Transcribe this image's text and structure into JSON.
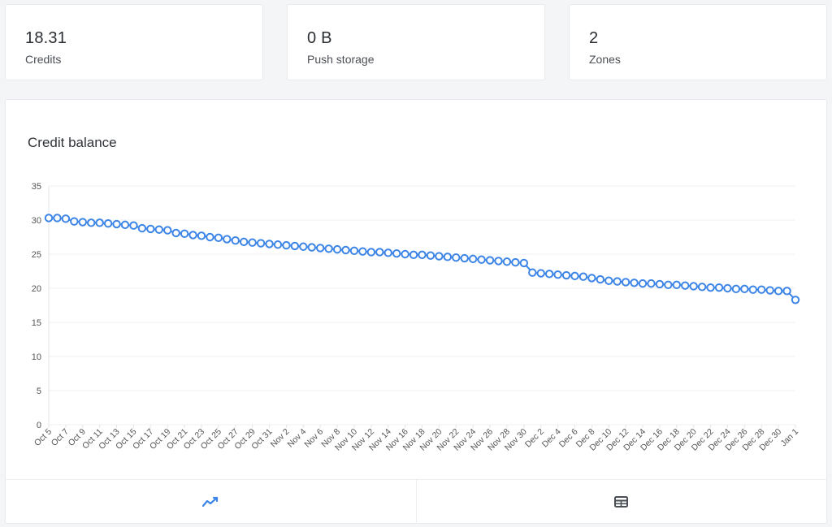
{
  "stats": {
    "credits": {
      "value": "18.31",
      "label": "Credits"
    },
    "push_storage": {
      "value": "0 B",
      "label": "Push storage"
    },
    "zones": {
      "value": "2",
      "label": "Zones"
    }
  },
  "chart_panel": {
    "title": "Credit balance",
    "tabs": [
      {
        "name": "line-chart-view",
        "icon": "trend-line-icon",
        "active": true
      },
      {
        "name": "table-view",
        "icon": "table-icon",
        "active": false
      }
    ]
  },
  "colors": {
    "accent": "#3d85e6",
    "grid": "#eef0f2",
    "axis_text": "#555555"
  },
  "chart_data": {
    "type": "line",
    "title": "Credit balance",
    "xlabel": "",
    "ylabel": "",
    "ylim": [
      0,
      35
    ],
    "yticks": [
      0,
      5,
      10,
      15,
      20,
      25,
      30,
      35
    ],
    "grid": true,
    "legend": "none",
    "x_tick_labels": [
      "Oct 5",
      "Oct 7",
      "Oct 9",
      "Oct 11",
      "Oct 13",
      "Oct 15",
      "Oct 17",
      "Oct 19",
      "Oct 21",
      "Oct 23",
      "Oct 25",
      "Oct 27",
      "Oct 29",
      "Oct 31",
      "Nov 2",
      "Nov 4",
      "Nov 6",
      "Nov 8",
      "Nov 10",
      "Nov 12",
      "Nov 14",
      "Nov 16",
      "Nov 18",
      "Nov 20",
      "Nov 22",
      "Nov 24",
      "Nov 26",
      "Nov 28",
      "Nov 30",
      "Dec 2",
      "Dec 4",
      "Dec 6",
      "Dec 8",
      "Dec 10",
      "Dec 12",
      "Dec 14",
      "Dec 16",
      "Dec 18",
      "Dec 20",
      "Dec 22",
      "Dec 24",
      "Dec 26",
      "Dec 28",
      "Dec 30",
      "Jan 1"
    ],
    "series": [
      {
        "values": [
          30.3,
          30.3,
          30.2,
          29.8,
          29.7,
          29.6,
          29.6,
          29.5,
          29.4,
          29.3,
          29.2,
          28.8,
          28.7,
          28.6,
          28.5,
          28.1,
          28.0,
          27.8,
          27.7,
          27.5,
          27.4,
          27.2,
          27.0,
          26.8,
          26.7,
          26.6,
          26.5,
          26.4,
          26.3,
          26.2,
          26.1,
          26.0,
          25.9,
          25.8,
          25.7,
          25.6,
          25.5,
          25.4,
          25.3,
          25.3,
          25.2,
          25.1,
          25.0,
          24.9,
          24.9,
          24.8,
          24.7,
          24.6,
          24.5,
          24.4,
          24.3,
          24.2,
          24.1,
          24.0,
          23.9,
          23.8,
          23.7,
          22.3,
          22.2,
          22.1,
          22.0,
          21.9,
          21.8,
          21.7,
          21.5,
          21.3,
          21.1,
          21.0,
          20.9,
          20.8,
          20.7,
          20.7,
          20.6,
          20.5,
          20.5,
          20.4,
          20.3,
          20.2,
          20.1,
          20.1,
          20.0,
          19.9,
          19.9,
          19.8,
          19.8,
          19.7,
          19.6,
          19.6,
          18.3
        ]
      }
    ]
  }
}
